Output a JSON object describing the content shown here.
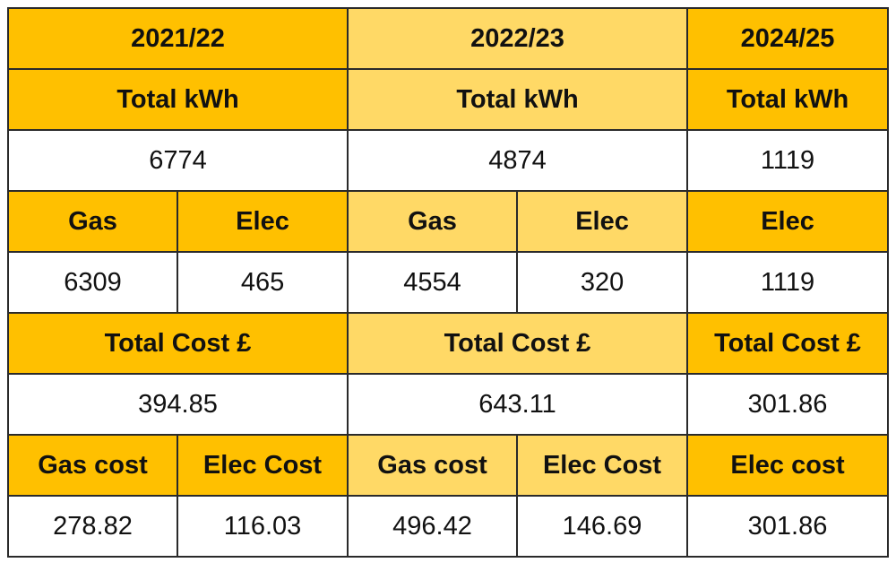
{
  "years": [
    {
      "year": "2021/22",
      "total_kwh_label": "Total kWh",
      "total_kwh": "6774",
      "kwh_split": [
        {
          "label": "Gas",
          "value": "6309"
        },
        {
          "label": "Elec",
          "value": "465"
        }
      ],
      "total_cost_label": "Total Cost £",
      "total_cost": "394.85",
      "cost_split": [
        {
          "label": "Gas cost",
          "value": "278.82"
        },
        {
          "label": "Elec Cost",
          "value": "116.03"
        }
      ]
    },
    {
      "year": "2022/23",
      "total_kwh_label": "Total kWh",
      "total_kwh": "4874",
      "kwh_split": [
        {
          "label": "Gas",
          "value": "4554"
        },
        {
          "label": "Elec",
          "value": "320"
        }
      ],
      "total_cost_label": "Total Cost £",
      "total_cost": "643.11",
      "cost_split": [
        {
          "label": "Gas cost",
          "value": "496.42"
        },
        {
          "label": "Elec Cost",
          "value": "146.69"
        }
      ]
    },
    {
      "year": "2024/25",
      "total_kwh_label": "Total kWh",
      "total_kwh": "1119",
      "kwh_split": [
        {
          "label": "Elec",
          "value": "1119"
        }
      ],
      "total_cost_label": "Total Cost £",
      "total_cost": "301.86",
      "cost_split": [
        {
          "label": "Elec cost",
          "value": "301.86"
        }
      ]
    }
  ]
}
